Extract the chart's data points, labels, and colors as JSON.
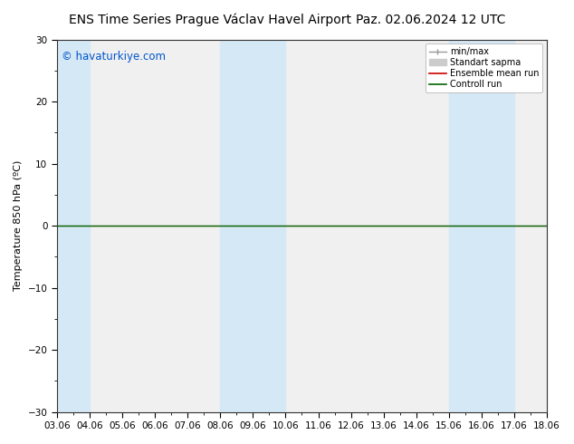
{
  "title_left": "ENS Time Series Prague Václav Havel Airport",
  "title_right": "Paz. 02.06.2024 12 UTC",
  "ylabel": "Temperature 850 hPa (ºC)",
  "watermark": "© havaturkiye.com",
  "xtick_labels": [
    "03.06",
    "04.06",
    "05.06",
    "06.06",
    "07.06",
    "08.06",
    "09.06",
    "10.06",
    "11.06",
    "12.06",
    "13.06",
    "14.06",
    "15.06",
    "16.06",
    "17.06",
    "18.06"
  ],
  "xlim_start": 0,
  "xlim_end": 15,
  "ylim": [
    -30,
    30
  ],
  "yticks": [
    -30,
    -20,
    -10,
    0,
    10,
    20,
    30
  ],
  "shaded_bands": [
    {
      "x_start": 0,
      "x_end": 1,
      "color": "#d5e8f5"
    },
    {
      "x_start": 5,
      "x_end": 7,
      "color": "#d5e8f5"
    },
    {
      "x_start": 12,
      "x_end": 14,
      "color": "#d5e8f5"
    }
  ],
  "line_y": 0,
  "green_line_color": "#006600",
  "red_line_color": "#cc0000",
  "plot_bg_color": "#f0f0f0",
  "background_color": "#ffffff",
  "legend_items": [
    {
      "label": "min/max",
      "color": "#888888"
    },
    {
      "label": "Standart sapma",
      "color": "#cccccc"
    },
    {
      "label": "Ensemble mean run",
      "color": "#cc0000"
    },
    {
      "label": "Controll run",
      "color": "#006600"
    }
  ],
  "watermark_color": "#0055cc",
  "title_fontsize": 10,
  "tick_fontsize": 7.5,
  "ylabel_fontsize": 8,
  "legend_fontsize": 7,
  "watermark_fontsize": 8.5
}
